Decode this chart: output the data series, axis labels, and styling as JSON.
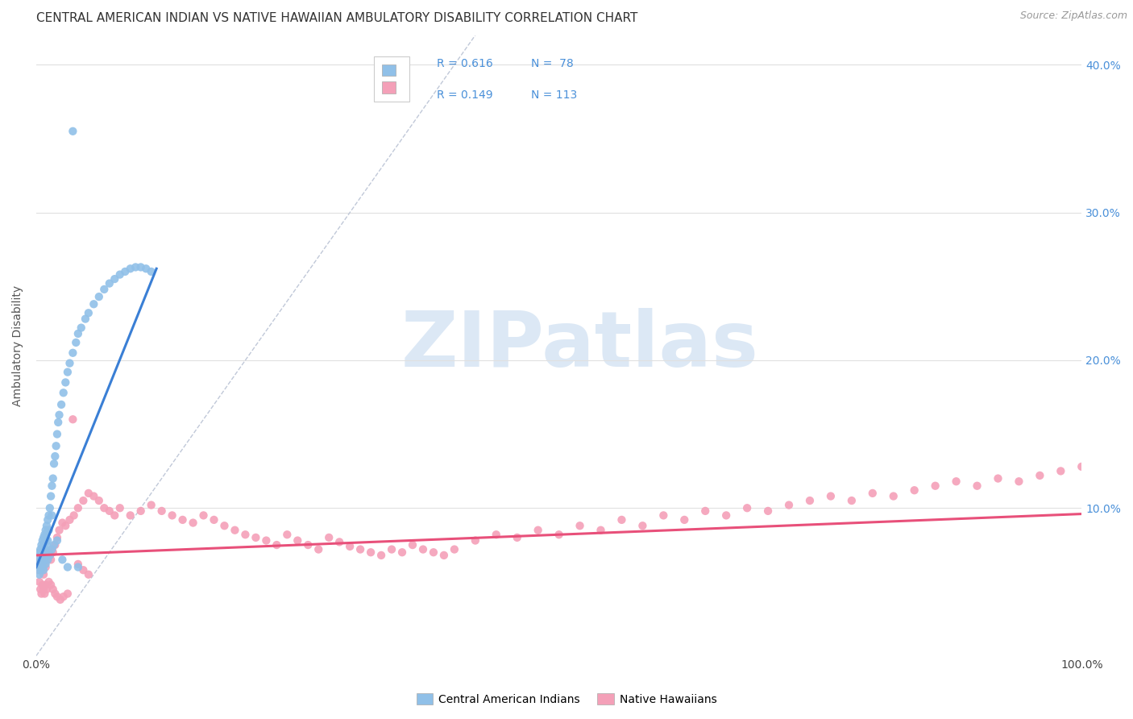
{
  "title": "CENTRAL AMERICAN INDIAN VS NATIVE HAWAIIAN AMBULATORY DISABILITY CORRELATION CHART",
  "source": "Source: ZipAtlas.com",
  "ylabel": "Ambulatory Disability",
  "xlim": [
    0,
    1.0
  ],
  "ylim": [
    0.0,
    0.42
  ],
  "xtick_labels": [
    "0.0%",
    "100.0%"
  ],
  "xtick_positions": [
    0.0,
    1.0
  ],
  "ytick_labels": [
    "10.0%",
    "20.0%",
    "30.0%",
    "40.0%"
  ],
  "ytick_positions": [
    0.1,
    0.2,
    0.3,
    0.4
  ],
  "background_color": "#ffffff",
  "grid_color": "#e0e0e0",
  "blue_color": "#90c0e8",
  "pink_color": "#f4a0b8",
  "blue_line_color": "#3a7fd5",
  "pink_line_color": "#e8507a",
  "diag_line_color": "#c0c8d8",
  "legend_R1": "R = 0.616",
  "legend_N1": "N =  78",
  "legend_R2": "R = 0.149",
  "legend_N2": "N = 113",
  "legend_label1": "Central American Indians",
  "legend_label2": "Native Hawaiians",
  "title_fontsize": 11,
  "source_fontsize": 9,
  "label_fontsize": 10,
  "tick_fontsize": 10,
  "blue_scatter_x": [
    0.002,
    0.003,
    0.003,
    0.004,
    0.004,
    0.005,
    0.005,
    0.005,
    0.006,
    0.006,
    0.006,
    0.007,
    0.007,
    0.007,
    0.008,
    0.008,
    0.008,
    0.009,
    0.009,
    0.01,
    0.01,
    0.01,
    0.011,
    0.011,
    0.012,
    0.012,
    0.013,
    0.014,
    0.015,
    0.015,
    0.016,
    0.017,
    0.018,
    0.019,
    0.02,
    0.021,
    0.022,
    0.024,
    0.026,
    0.028,
    0.03,
    0.032,
    0.035,
    0.038,
    0.04,
    0.043,
    0.047,
    0.05,
    0.055,
    0.06,
    0.065,
    0.07,
    0.075,
    0.08,
    0.085,
    0.09,
    0.095,
    0.1,
    0.105,
    0.11,
    0.003,
    0.004,
    0.005,
    0.006,
    0.007,
    0.008,
    0.009,
    0.01,
    0.011,
    0.012,
    0.013,
    0.015,
    0.017,
    0.02,
    0.025,
    0.03,
    0.035,
    0.04
  ],
  "blue_scatter_y": [
    0.06,
    0.065,
    0.07,
    0.068,
    0.072,
    0.075,
    0.07,
    0.065,
    0.073,
    0.078,
    0.063,
    0.068,
    0.074,
    0.08,
    0.077,
    0.082,
    0.072,
    0.079,
    0.085,
    0.083,
    0.088,
    0.075,
    0.092,
    0.078,
    0.095,
    0.085,
    0.1,
    0.108,
    0.115,
    0.095,
    0.12,
    0.13,
    0.135,
    0.142,
    0.15,
    0.158,
    0.163,
    0.17,
    0.178,
    0.185,
    0.192,
    0.198,
    0.205,
    0.212,
    0.218,
    0.222,
    0.228,
    0.232,
    0.238,
    0.243,
    0.248,
    0.252,
    0.255,
    0.258,
    0.26,
    0.262,
    0.263,
    0.263,
    0.262,
    0.26,
    0.055,
    0.058,
    0.062,
    0.06,
    0.058,
    0.065,
    0.062,
    0.068,
    0.065,
    0.07,
    0.068,
    0.072,
    0.075,
    0.078,
    0.065,
    0.06,
    0.355,
    0.06
  ],
  "pink_scatter_x": [
    0.002,
    0.003,
    0.004,
    0.005,
    0.006,
    0.007,
    0.008,
    0.009,
    0.01,
    0.011,
    0.012,
    0.013,
    0.014,
    0.015,
    0.016,
    0.018,
    0.02,
    0.022,
    0.025,
    0.028,
    0.032,
    0.036,
    0.04,
    0.045,
    0.05,
    0.055,
    0.06,
    0.065,
    0.07,
    0.075,
    0.08,
    0.09,
    0.1,
    0.11,
    0.12,
    0.13,
    0.14,
    0.15,
    0.16,
    0.17,
    0.18,
    0.19,
    0.2,
    0.21,
    0.22,
    0.23,
    0.24,
    0.25,
    0.26,
    0.27,
    0.28,
    0.29,
    0.3,
    0.31,
    0.32,
    0.33,
    0.34,
    0.35,
    0.36,
    0.37,
    0.38,
    0.39,
    0.4,
    0.42,
    0.44,
    0.46,
    0.48,
    0.5,
    0.52,
    0.54,
    0.56,
    0.58,
    0.6,
    0.62,
    0.64,
    0.66,
    0.68,
    0.7,
    0.72,
    0.74,
    0.76,
    0.78,
    0.8,
    0.82,
    0.84,
    0.86,
    0.88,
    0.9,
    0.92,
    0.94,
    0.96,
    0.98,
    1.0,
    0.003,
    0.004,
    0.005,
    0.006,
    0.007,
    0.008,
    0.009,
    0.01,
    0.012,
    0.014,
    0.016,
    0.018,
    0.02,
    0.023,
    0.026,
    0.03,
    0.035,
    0.04,
    0.045,
    0.05
  ],
  "pink_scatter_y": [
    0.058,
    0.062,
    0.065,
    0.06,
    0.058,
    0.055,
    0.063,
    0.06,
    0.068,
    0.065,
    0.07,
    0.068,
    0.065,
    0.072,
    0.07,
    0.075,
    0.08,
    0.085,
    0.09,
    0.088,
    0.092,
    0.095,
    0.1,
    0.105,
    0.11,
    0.108,
    0.105,
    0.1,
    0.098,
    0.095,
    0.1,
    0.095,
    0.098,
    0.102,
    0.098,
    0.095,
    0.092,
    0.09,
    0.095,
    0.092,
    0.088,
    0.085,
    0.082,
    0.08,
    0.078,
    0.075,
    0.082,
    0.078,
    0.075,
    0.072,
    0.08,
    0.077,
    0.074,
    0.072,
    0.07,
    0.068,
    0.072,
    0.07,
    0.075,
    0.072,
    0.07,
    0.068,
    0.072,
    0.078,
    0.082,
    0.08,
    0.085,
    0.082,
    0.088,
    0.085,
    0.092,
    0.088,
    0.095,
    0.092,
    0.098,
    0.095,
    0.1,
    0.098,
    0.102,
    0.105,
    0.108,
    0.105,
    0.11,
    0.108,
    0.112,
    0.115,
    0.118,
    0.115,
    0.12,
    0.118,
    0.122,
    0.125,
    0.128,
    0.05,
    0.045,
    0.042,
    0.048,
    0.045,
    0.042,
    0.048,
    0.045,
    0.05,
    0.048,
    0.045,
    0.042,
    0.04,
    0.038,
    0.04,
    0.042,
    0.16,
    0.062,
    0.058,
    0.055
  ],
  "blue_trendline_x": [
    0.0,
    0.115
  ],
  "blue_trendline_y": [
    0.06,
    0.262
  ],
  "pink_trendline_x": [
    0.0,
    1.0
  ],
  "pink_trendline_y": [
    0.068,
    0.096
  ],
  "diag_line_x": [
    0.0,
    0.42
  ],
  "diag_line_y": [
    0.0,
    0.42
  ],
  "watermark_text": "ZIPatlas",
  "watermark_color": "#dce8f5"
}
